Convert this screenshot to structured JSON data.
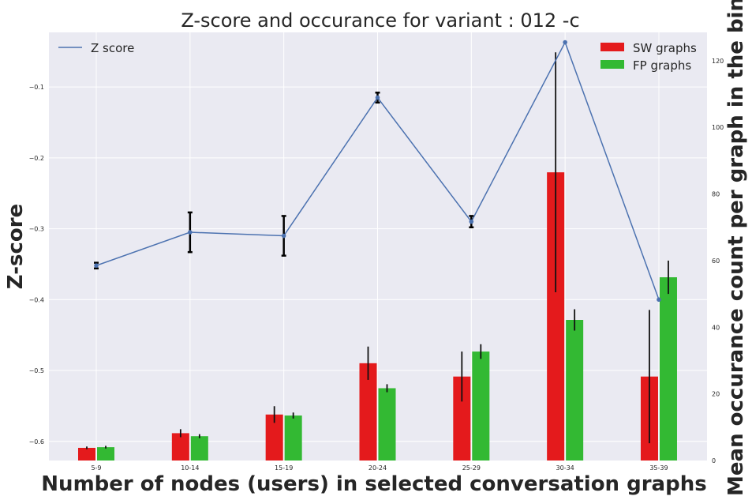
{
  "chart_data": {
    "type": "bar",
    "title": "Z-score and occurance for variant : 012 -c",
    "xlabel": "Number of nodes (users) in selected conversation graphs",
    "ylabel_left": "Z-score",
    "ylabel_right": "Mean occurance count per graph in the bin",
    "categories": [
      "5-9",
      "10-14",
      "15-19",
      "20-24",
      "25-29",
      "30-34",
      "35-39"
    ],
    "left_axis": {
      "range": [
        -0.627,
        -0.023
      ],
      "ticks": [
        -0.6,
        -0.5,
        -0.4,
        -0.3,
        -0.2,
        -0.1
      ],
      "tick_labels": [
        "−0.6",
        "−0.5",
        "−0.4",
        "−0.3",
        "−0.2",
        "−0.1"
      ]
    },
    "right_axis": {
      "range": [
        0,
        128.5
      ],
      "ticks": [
        0,
        20,
        40,
        60,
        80,
        100,
        120
      ],
      "tick_labels": [
        "0",
        "20",
        "40",
        "60",
        "80",
        "100",
        "120"
      ]
    },
    "line_series": {
      "name": "Z score",
      "color": "#4c72b0",
      "values": [
        -0.352,
        -0.305,
        -0.31,
        -0.115,
        -0.29,
        -0.037,
        -0.4
      ],
      "errors": [
        0.004,
        0.028,
        0.028,
        0.007,
        0.008,
        0.0,
        0.0
      ]
    },
    "bar_series": [
      {
        "name": "SW graphs",
        "color": "#e41a1c",
        "values": [
          3.8,
          8.2,
          13.8,
          29.2,
          25.2,
          86.5,
          25.2
        ],
        "errors": [
          0.4,
          1.2,
          2.5,
          5.0,
          7.5,
          36.0,
          20.0
        ]
      },
      {
        "name": "FP graphs",
        "color": "#33b933",
        "values": [
          4.0,
          7.3,
          13.5,
          21.7,
          32.7,
          42.2,
          55.0
        ],
        "errors": [
          0.4,
          0.6,
          0.9,
          1.2,
          2.2,
          3.2,
          5.0
        ]
      }
    ],
    "grid": true,
    "legend_left": "top-left",
    "legend_right": "top-right"
  }
}
